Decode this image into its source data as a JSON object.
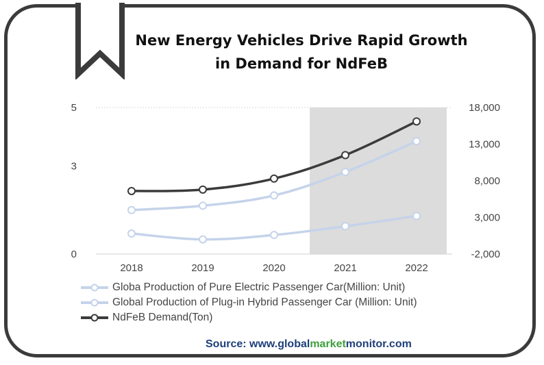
{
  "title": {
    "line1": "New Energy Vehicles Drive Rapid Growth",
    "line2": "in Demand for NdFeB"
  },
  "source": {
    "prefix": "Source: www.",
    "part1": "global",
    "part2": "market",
    "part3": "monitor",
    "suffix": ".com"
  },
  "chart_data": {
    "type": "line",
    "x": [
      "2018",
      "2019",
      "2020",
      "2021",
      "2022"
    ],
    "highlight_band": [
      "2021",
      "2022"
    ],
    "left_axis": {
      "ticks": [
        "0",
        "3",
        "5"
      ],
      "range": [
        0,
        5
      ]
    },
    "right_axis": {
      "ticks": [
        "-2,000",
        "3,000",
        "8,000",
        "13,000",
        "18,000"
      ],
      "range": [
        -2000,
        18000
      ]
    },
    "series": [
      {
        "name": "Globa Production of Pure Electric Passenger Car(Million: Unit)",
        "axis": "left",
        "values": [
          1.5,
          1.65,
          2.0,
          2.8,
          3.85
        ],
        "color": "#c5d3ea"
      },
      {
        "name": "Global Production of Plug-in Hybrid Passenger Car (Million: Unit)",
        "axis": "left",
        "values": [
          0.7,
          0.5,
          0.65,
          0.95,
          1.3
        ],
        "color": "#c5d3ea"
      },
      {
        "name": "NdFeB Demand(Ton)",
        "axis": "right",
        "values": [
          6600,
          6800,
          8300,
          11500,
          16100
        ],
        "color": "#3b3b3b"
      }
    ],
    "legend_position": "bottom",
    "grid": false
  }
}
